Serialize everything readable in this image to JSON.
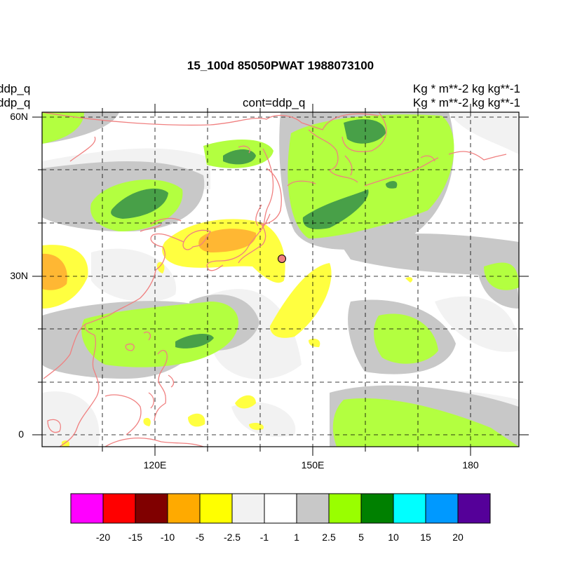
{
  "title": "15_100d 85050PWAT  1988073100",
  "left_labels": [
    "ddp_q",
    "ddp_q"
  ],
  "center_label": "cont=ddp_q",
  "right_labels": [
    "Kg  * m**-2 kg kg**-1",
    "Kg  * m**-2 kg kg**-1"
  ],
  "axes": {
    "lat_ticks": [
      {
        "label": "60N"
      },
      {
        "label": "30N"
      },
      {
        "label": "0"
      }
    ],
    "lon_ticks": [
      {
        "label": "120E"
      },
      {
        "label": "150E"
      },
      {
        "label": "180"
      }
    ]
  },
  "map": {
    "region": "East Asia / Western Pacific",
    "lon_range": [
      100,
      190
    ],
    "lat_range": [
      -2,
      62
    ],
    "coastline_color": "#f08080",
    "grid": "dashed",
    "marker": {
      "lon": 144.8,
      "lat": 33.3,
      "color": "#f08080"
    }
  },
  "colorbar": {
    "colors": [
      "#ff00ff",
      "#ff0000",
      "#800000",
      "#ffaa00",
      "#ffff00",
      "#f2f2f2",
      "#ffffff",
      "#c8c8c8",
      "#99ff00",
      "#008000",
      "#00ffff",
      "#0099ff",
      "#550099"
    ],
    "labels": [
      "-20",
      "-15",
      "-10",
      "-5",
      "-2.5",
      "-1",
      "1",
      "2.5",
      "5",
      "10",
      "15",
      "20"
    ]
  }
}
